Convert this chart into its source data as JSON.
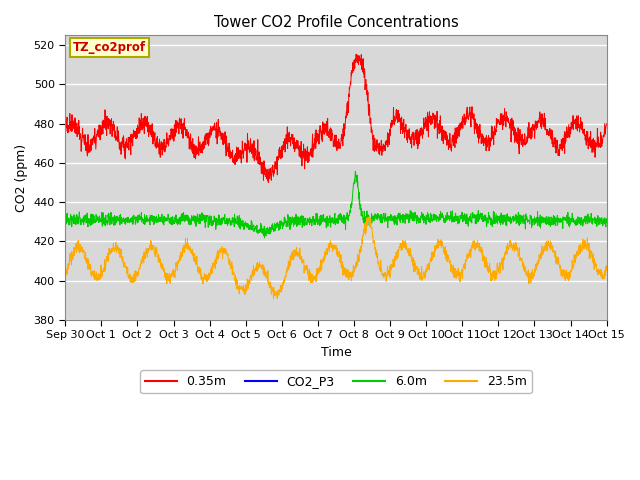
{
  "title": "Tower CO2 Profile Concentrations",
  "xlabel": "Time",
  "ylabel": "CO2 (ppm)",
  "ylim": [
    380,
    525
  ],
  "yticks": [
    380,
    400,
    420,
    440,
    460,
    480,
    500,
    520
  ],
  "annotation_text": "TZ_co2prof",
  "annotation_color": "#cc0000",
  "annotation_bg": "#ffffcc",
  "annotation_border": "#aaaa00",
  "fig_bg_color": "#ffffff",
  "plot_bg_color": "#d8d8d8",
  "grid_color": "#ffffff",
  "line_colors": {
    "0.35m": "#ff0000",
    "CO2_P3": "#0000ff",
    "6.0m": "#00cc00",
    "23.5m": "#ffaa00"
  },
  "legend_labels": [
    "0.35m",
    "CO2_P3",
    "6.0m",
    "23.5m"
  ],
  "num_points": 2000
}
